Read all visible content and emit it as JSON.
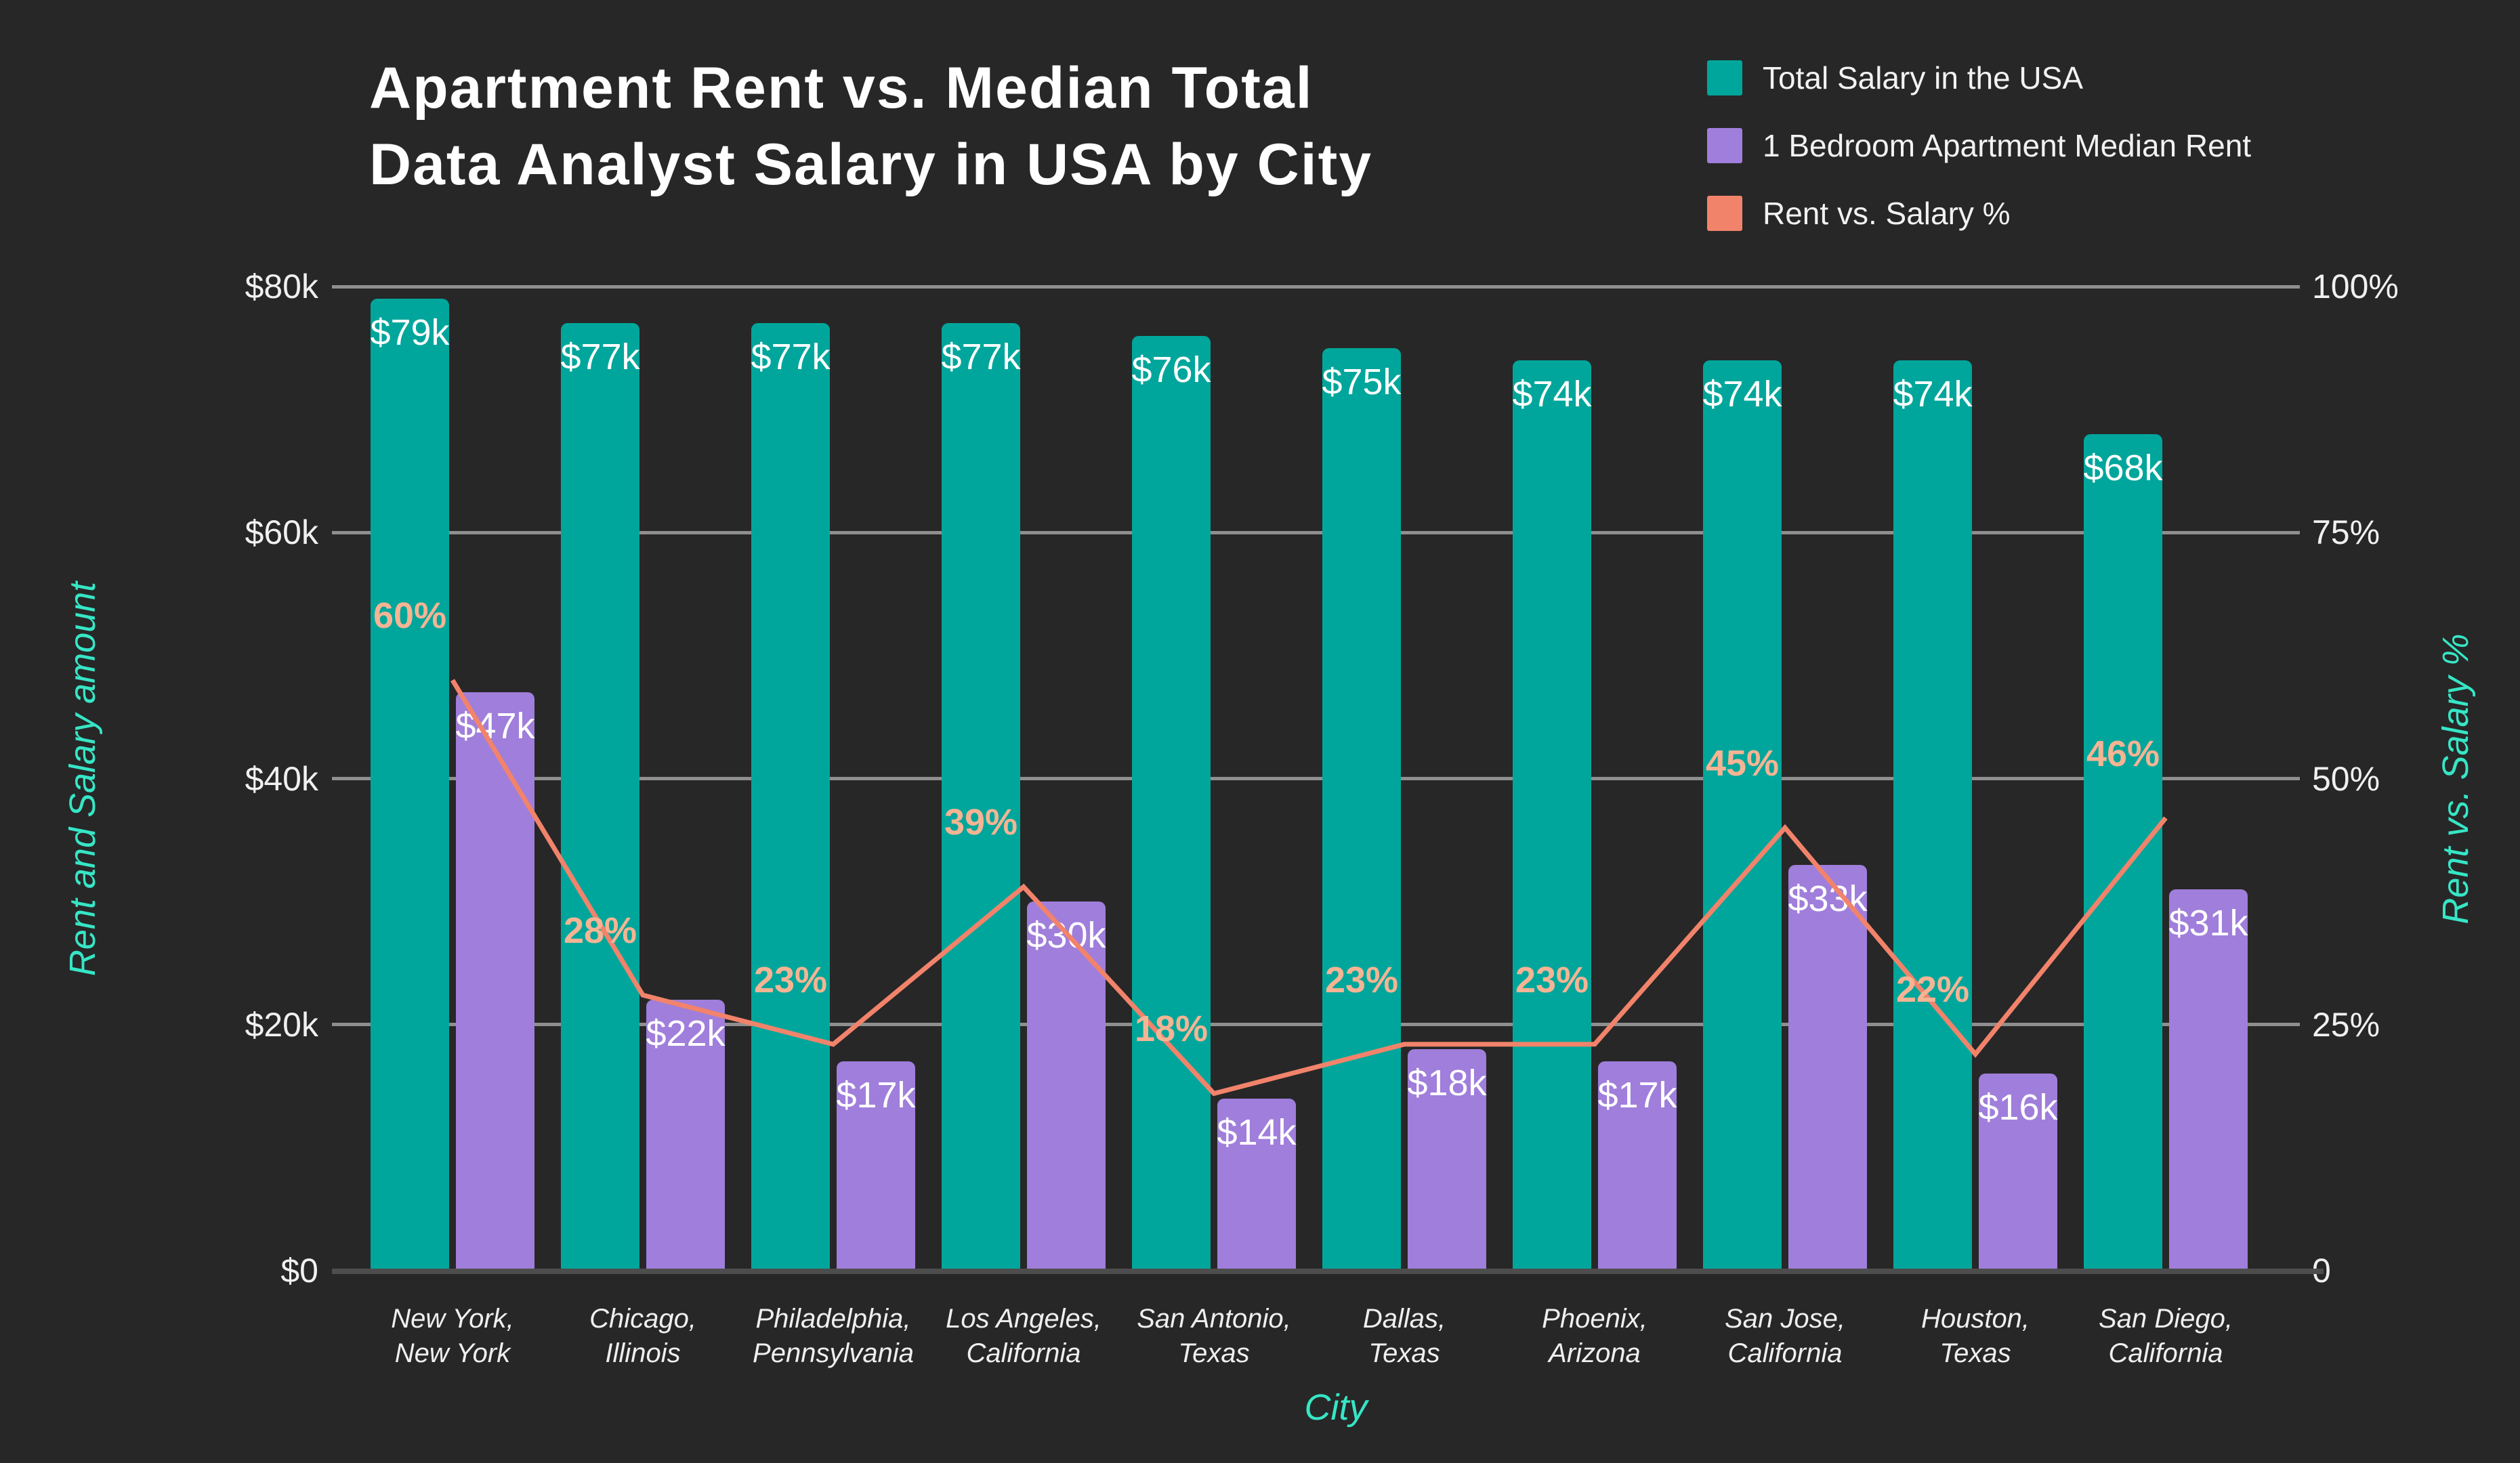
{
  "chart_data": {
    "type": "bar+line",
    "title_lines": [
      "Apartment Rent vs. Median Total",
      "Data Analyst Salary in USA by City"
    ],
    "categories": [
      "New York, New York",
      "Chicago, Illinois",
      "Philadelphia, Pennsylvania",
      "Los Angeles, California",
      "San Antonio, Texas",
      "Dallas, Texas",
      "Phoenix, Arizona",
      "San Jose, California",
      "Houston, Texas",
      "San Diego, California"
    ],
    "category_lines": [
      [
        "New York,",
        "New York"
      ],
      [
        "Chicago,",
        "Illinois"
      ],
      [
        "Philadelphia,",
        "Pennsylvania"
      ],
      [
        "Los Angeles,",
        "California"
      ],
      [
        "San Antonio,",
        "Texas"
      ],
      [
        "Dallas,",
        "Texas"
      ],
      [
        "Phoenix,",
        "Arizona"
      ],
      [
        "San Jose,",
        "California"
      ],
      [
        "Houston,",
        "Texas"
      ],
      [
        "San Diego,",
        "California"
      ]
    ],
    "series": [
      {
        "name": "Total Salary in the USA",
        "type": "bar",
        "color": "#00A69B",
        "values": [
          79,
          77,
          77,
          77,
          76,
          75,
          74,
          74,
          74,
          68
        ],
        "labels": [
          "$79k",
          "$77k",
          "$77k",
          "$77k",
          "$76k",
          "$75k",
          "$74k",
          "$74k",
          "$74k",
          "$68k"
        ]
      },
      {
        "name": "1 Bedroom Apartment Median Rent",
        "type": "bar",
        "color": "#A07EDB",
        "values": [
          47,
          22,
          17,
          30,
          14,
          18,
          17,
          33,
          16,
          31
        ],
        "labels": [
          "$47k",
          "$22k",
          "$17k",
          "$30k",
          "$14k",
          "$18k",
          "$17k",
          "$33k",
          "$16k",
          "$31k"
        ]
      },
      {
        "name": "Rent vs. Salary %",
        "type": "line",
        "color": "#F2836B",
        "label_color": "#F5B493",
        "values": [
          60,
          28,
          23,
          39,
          18,
          23,
          23,
          45,
          22,
          46
        ],
        "labels": [
          "60%",
          "28%",
          "23%",
          "39%",
          "18%",
          "23%",
          "23%",
          "45%",
          "22%",
          "46%"
        ]
      }
    ],
    "left_axis": {
      "title": "Rent and Salary amount",
      "ticks": [
        "$80k",
        "$60k",
        "$40k",
        "$20k",
        "$0"
      ],
      "max": 80
    },
    "right_axis": {
      "title": "Rent vs. Salary %",
      "ticks": [
        "100%",
        "75%",
        "50%",
        "25%",
        "0"
      ],
      "max": 100
    },
    "x_axis": {
      "title": "City"
    },
    "colors": {
      "background": "#272727",
      "gridline": "#8F8F8F",
      "baseline": "#4D4D4D",
      "tick_text": "#F0F0F0",
      "axis_title": "#36E6C6",
      "bar_label": "#FFFFFF"
    }
  }
}
